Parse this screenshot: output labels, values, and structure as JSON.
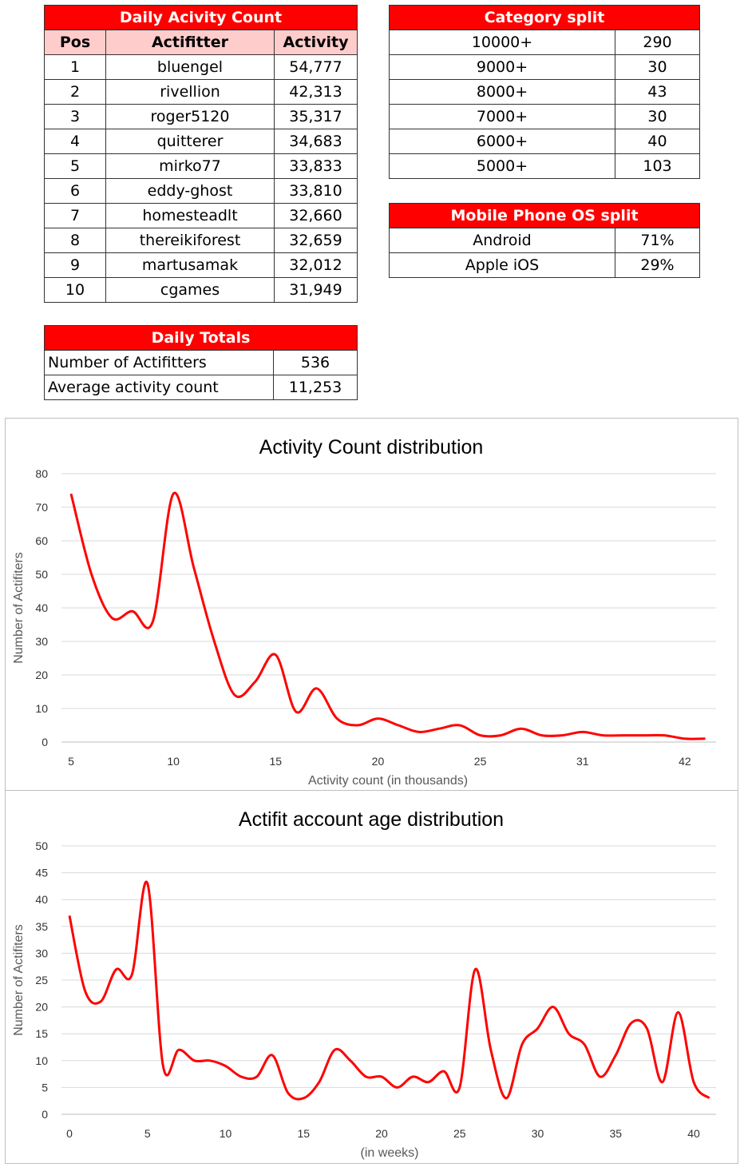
{
  "daily_activity": {
    "title": "Daily Acivity Count",
    "headers": [
      "Pos",
      "Actifitter",
      "Activity"
    ],
    "rows": [
      {
        "pos": "1",
        "name": "bluengel",
        "activity": "54,777"
      },
      {
        "pos": "2",
        "name": "rivellion",
        "activity": "42,313"
      },
      {
        "pos": "3",
        "name": "roger5120",
        "activity": "35,317"
      },
      {
        "pos": "4",
        "name": "quitterer",
        "activity": "34,683"
      },
      {
        "pos": "5",
        "name": "mirko77",
        "activity": "33,833"
      },
      {
        "pos": "6",
        "name": "eddy-ghost",
        "activity": "33,810"
      },
      {
        "pos": "7",
        "name": "homesteadlt",
        "activity": "32,660"
      },
      {
        "pos": "8",
        "name": "thereikiforest",
        "activity": "32,659"
      },
      {
        "pos": "9",
        "name": "martusamak",
        "activity": "32,012"
      },
      {
        "pos": "10",
        "name": "cgames",
        "activity": "31,949"
      }
    ]
  },
  "category_split": {
    "title": "Category split",
    "rows": [
      {
        "label": "10000+",
        "value": "290"
      },
      {
        "label": "9000+",
        "value": "30"
      },
      {
        "label": "8000+",
        "value": "43"
      },
      {
        "label": "7000+",
        "value": "30"
      },
      {
        "label": "6000+",
        "value": "40"
      },
      {
        "label": "5000+",
        "value": "103"
      }
    ]
  },
  "os_split": {
    "title": "Mobile Phone OS split",
    "rows": [
      {
        "label": "Android",
        "value": "71%"
      },
      {
        "label": "Apple iOS",
        "value": "29%"
      }
    ]
  },
  "daily_totals": {
    "title": "Daily Totals",
    "rows": [
      {
        "label": "Number of Actifitters",
        "value": "536"
      },
      {
        "label": "Average activity count",
        "value": "11,253"
      }
    ]
  },
  "colors": {
    "accent": "#ff0000",
    "header_light": "#ffcccc",
    "grid": "#d9d9d9"
  },
  "chart_data": [
    {
      "type": "line",
      "title": "Activity Count distribution",
      "xlabel": "Activity count (in thousands)",
      "ylabel": "Number of Actifiters",
      "ylim": [
        0,
        80
      ],
      "yticks": [
        0,
        10,
        20,
        30,
        40,
        50,
        60,
        70,
        80
      ],
      "x_tick_labels": [
        {
          "index": 0,
          "label": "5"
        },
        {
          "index": 5,
          "label": "10"
        },
        {
          "index": 10,
          "label": "15"
        },
        {
          "index": 15,
          "label": "20"
        },
        {
          "index": 20,
          "label": "25"
        },
        {
          "index": 25,
          "label": "31"
        },
        {
          "index": 30,
          "label": "42"
        }
      ],
      "series": [
        {
          "name": "Number of Actifiters",
          "color": "#ff0000",
          "values": [
            74,
            50,
            37,
            39,
            36,
            74,
            52,
            30,
            14,
            18,
            26,
            9,
            16,
            7,
            5,
            7,
            5,
            3,
            4,
            5,
            2,
            2,
            4,
            2,
            2,
            3,
            2,
            2,
            2,
            2,
            1,
            1
          ]
        }
      ],
      "grid": true
    },
    {
      "type": "line",
      "title": "Actifit account age distribution",
      "xlabel": "(in weeks)",
      "ylabel": "Number of Actifiters",
      "ylim": [
        0,
        50
      ],
      "yticks": [
        0,
        5,
        10,
        15,
        20,
        25,
        30,
        35,
        40,
        45,
        50
      ],
      "x_tick_labels": [
        {
          "index": 0,
          "label": "0"
        },
        {
          "index": 5,
          "label": "5"
        },
        {
          "index": 10,
          "label": "10"
        },
        {
          "index": 15,
          "label": "15"
        },
        {
          "index": 20,
          "label": "20"
        },
        {
          "index": 25,
          "label": "25"
        },
        {
          "index": 30,
          "label": "30"
        },
        {
          "index": 35,
          "label": "35"
        },
        {
          "index": 40,
          "label": "40"
        }
      ],
      "series": [
        {
          "name": "Number of Actifiters",
          "color": "#ff0000",
          "values": [
            37,
            23,
            21,
            27,
            26,
            43,
            9,
            12,
            10,
            10,
            9,
            7,
            7,
            11,
            4,
            3,
            6,
            12,
            10,
            7,
            7,
            5,
            7,
            6,
            8,
            5,
            27,
            12,
            3,
            13,
            16,
            20,
            15,
            13,
            7,
            11,
            17,
            16,
            6,
            19,
            6,
            3
          ]
        }
      ],
      "grid": true
    }
  ]
}
